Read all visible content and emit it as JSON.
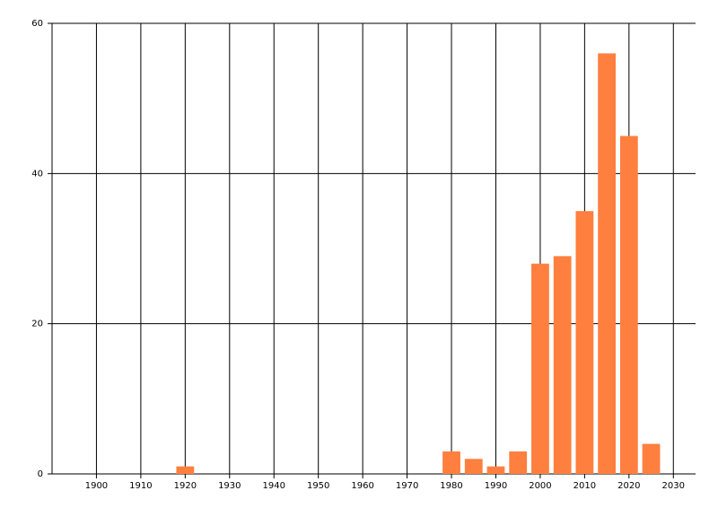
{
  "chart_data": {
    "type": "bar",
    "x": [
      1920,
      1980,
      1985,
      1990,
      1995,
      2000,
      2005,
      2010,
      2015,
      2020,
      2025
    ],
    "values": [
      1,
      3,
      2,
      1,
      3,
      28,
      29,
      35,
      56,
      45,
      4
    ],
    "color": "#ff7f3f",
    "xlim": [
      1890,
      2035
    ],
    "xticks": [
      1900,
      1910,
      1920,
      1930,
      1940,
      1950,
      1960,
      1970,
      1980,
      1990,
      2000,
      2010,
      2020,
      2030
    ],
    "ylim": [
      0,
      60
    ],
    "yticks": [
      0,
      20,
      40,
      60
    ],
    "grid": true
  }
}
